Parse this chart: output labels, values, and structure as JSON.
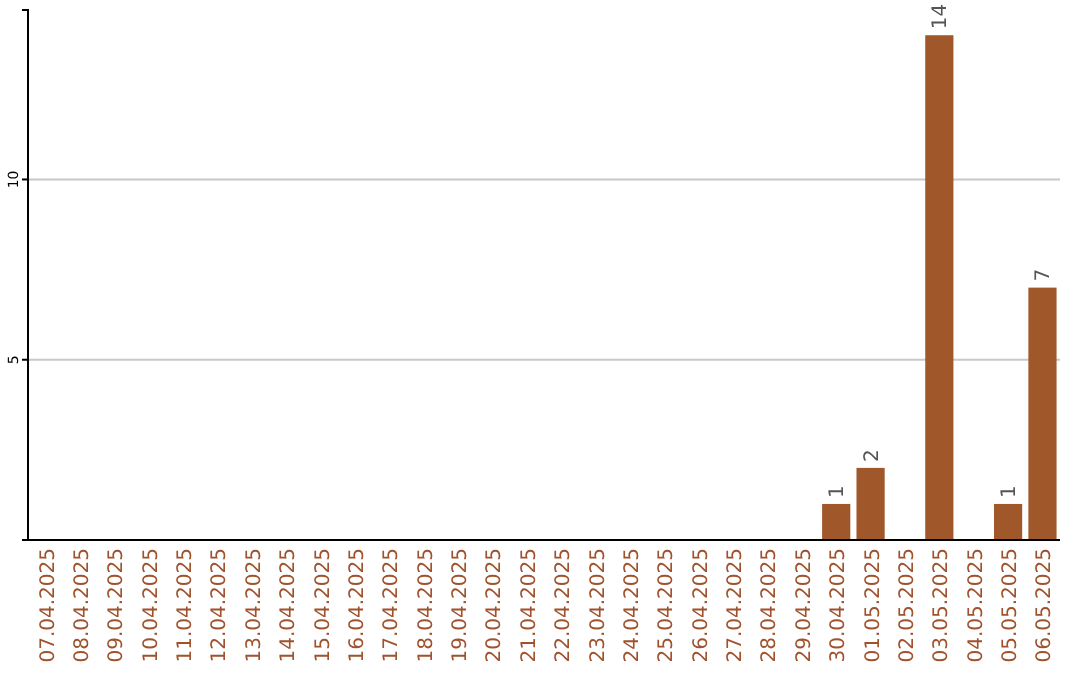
{
  "chart_data": {
    "type": "bar",
    "categories": [
      "07.04.2025",
      "08.04.2025",
      "09.04.2025",
      "10.04.2025",
      "11.04.2025",
      "12.04.2025",
      "13.04.2025",
      "14.04.2025",
      "15.04.2025",
      "16.04.2025",
      "17.04.2025",
      "18.04.2025",
      "19.04.2025",
      "20.04.2025",
      "21.04.2025",
      "22.04.2025",
      "23.04.2025",
      "24.04.2025",
      "25.04.2025",
      "26.04.2025",
      "27.04.2025",
      "28.04.2025",
      "29.04.2025",
      "30.04.2025",
      "01.05.2025",
      "02.05.2025",
      "03.05.2025",
      "04.05.2025",
      "05.05.2025",
      "06.05.2025"
    ],
    "values": [
      0,
      0,
      0,
      0,
      0,
      0,
      0,
      0,
      0,
      0,
      0,
      0,
      0,
      0,
      0,
      0,
      0,
      0,
      0,
      0,
      0,
      0,
      0,
      1,
      2,
      0,
      14,
      0,
      1,
      7
    ],
    "color": "#a0572a",
    "ylim": [
      0,
      14.7
    ],
    "yticks": [
      5,
      10
    ],
    "grid": "y",
    "value_labels": [
      null,
      null,
      null,
      null,
      null,
      null,
      null,
      null,
      null,
      null,
      null,
      null,
      null,
      null,
      null,
      null,
      null,
      null,
      null,
      null,
      null,
      null,
      null,
      "1",
      "2",
      null,
      "14",
      null,
      "1",
      "7"
    ]
  }
}
